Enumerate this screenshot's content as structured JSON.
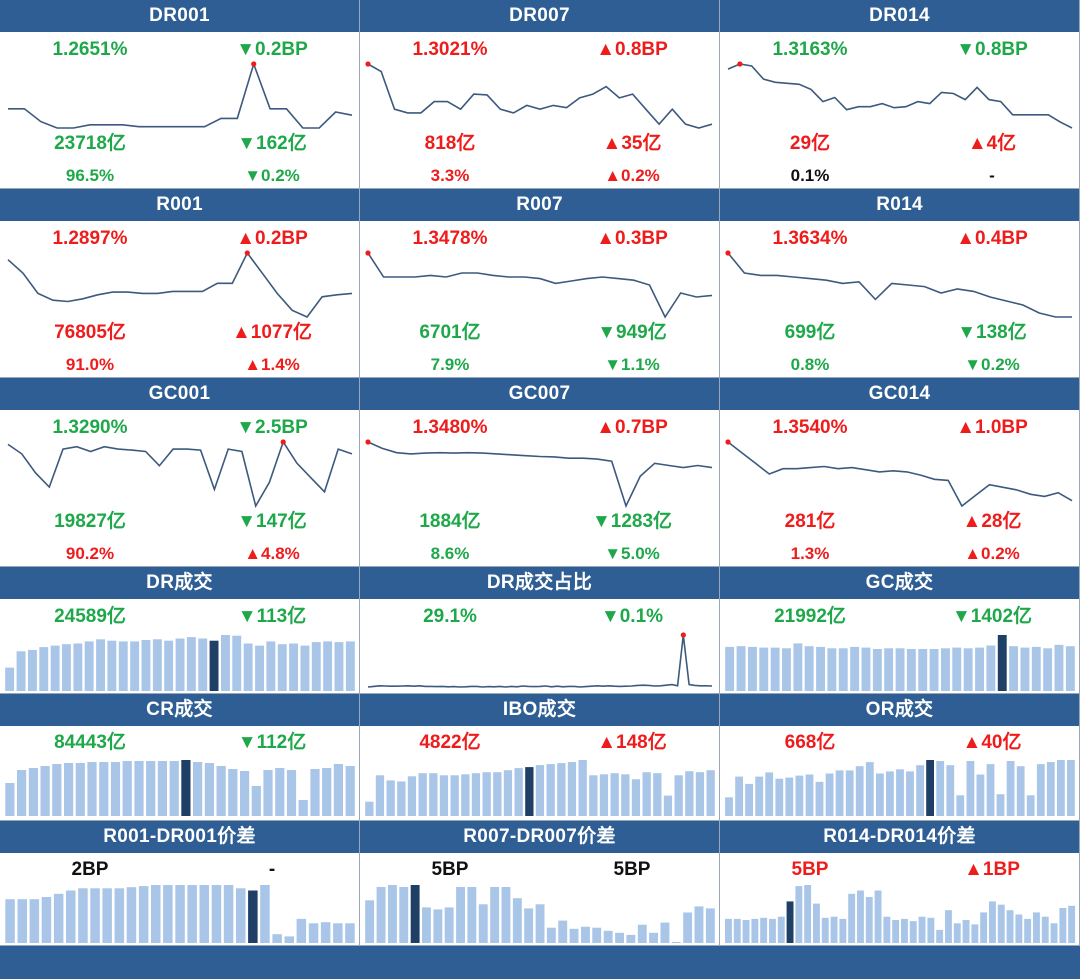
{
  "colors": {
    "header": "#2e5e94",
    "up": "#ef1c1c",
    "down": "#1fa84a",
    "bar": "#a9c6e8",
    "bar_highlight": "#1f3f66",
    "line": "#3c5a7d"
  },
  "rate_panels": [
    {
      "title": "DR001",
      "rate": "1.2651%",
      "rate_dir": "down",
      "change": "▼0.2BP",
      "change_dir": "down",
      "volume": "23718亿",
      "volume_dir": "down",
      "vol_change": "▼162亿",
      "vol_change_dir": "down",
      "share": "96.5%",
      "share_dir": "down",
      "share_change": "▼0.2%",
      "share_change_dir": "down",
      "series": [
        1.29,
        1.29,
        1.27,
        1.26,
        1.26,
        1.265,
        1.265,
        1.265,
        1.262,
        1.262,
        1.262,
        1.262,
        1.262,
        1.275,
        1.275,
        1.36,
        1.29,
        1.29,
        1.26,
        1.26,
        1.285,
        1.28
      ],
      "highlight": 15
    },
    {
      "title": "DR007",
      "rate": "1.3021%",
      "rate_dir": "up",
      "change": "▲0.8BP",
      "change_dir": "up",
      "volume": "818亿",
      "volume_dir": "up",
      "vol_change": "▲35亿",
      "vol_change_dir": "up",
      "share": "3.3%",
      "share_dir": "up",
      "share_change": "▲0.2%",
      "share_change_dir": "up",
      "series": [
        1.33,
        1.32,
        1.27,
        1.265,
        1.265,
        1.28,
        1.28,
        1.27,
        1.29,
        1.289,
        1.27,
        1.265,
        1.275,
        1.27,
        1.275,
        1.272,
        1.285,
        1.29,
        1.3,
        1.285,
        1.29,
        1.27,
        1.25,
        1.27,
        1.25,
        1.245,
        1.25
      ],
      "highlight": 0
    },
    {
      "title": "DR014",
      "rate": "1.3163%",
      "rate_dir": "down",
      "change": "▼0.8BP",
      "change_dir": "down",
      "volume": "29亿",
      "volume_dir": "up",
      "vol_change": "▲4亿",
      "vol_change_dir": "up",
      "share": "0.1%",
      "share_dir": "neutral",
      "share_change": "-",
      "share_change_dir": "neutral",
      "series": [
        1.35,
        1.355,
        1.353,
        1.34,
        1.337,
        1.336,
        1.335,
        1.33,
        1.318,
        1.322,
        1.31,
        1.313,
        1.313,
        1.316,
        1.312,
        1.313,
        1.318,
        1.316,
        1.327,
        1.326,
        1.32,
        1.332,
        1.32,
        1.318,
        1.305,
        1.305,
        1.305,
        1.305,
        1.298,
        1.292
      ],
      "highlight": 1
    },
    {
      "title": "R001",
      "rate": "1.2897%",
      "rate_dir": "up",
      "change": "▲0.2BP",
      "change_dir": "up",
      "volume": "76805亿",
      "volume_dir": "up",
      "vol_change": "▲1077亿",
      "vol_change_dir": "up",
      "share": "91.0%",
      "share_dir": "up",
      "share_change": "▲1.4%",
      "share_change_dir": "up",
      "series": [
        1.33,
        1.31,
        1.28,
        1.27,
        1.268,
        1.272,
        1.278,
        1.282,
        1.282,
        1.28,
        1.28,
        1.283,
        1.283,
        1.283,
        1.295,
        1.295,
        1.34,
        1.31,
        1.28,
        1.255,
        1.245,
        1.275,
        1.278,
        1.28
      ],
      "highlight": 16
    },
    {
      "title": "R007",
      "rate": "1.3478%",
      "rate_dir": "up",
      "change": "▲0.3BP",
      "change_dir": "up",
      "volume": "6701亿",
      "volume_dir": "down",
      "vol_change": "▼949亿",
      "vol_change_dir": "down",
      "share": "7.9%",
      "share_dir": "down",
      "share_change": "▼1.1%",
      "share_change_dir": "down",
      "series": [
        1.38,
        1.35,
        1.35,
        1.35,
        1.352,
        1.35,
        1.355,
        1.355,
        1.352,
        1.35,
        1.35,
        1.348,
        1.342,
        1.345,
        1.348,
        1.35,
        1.348,
        1.346,
        1.34,
        1.3,
        1.33,
        1.325,
        1.327
      ],
      "highlight": 0
    },
    {
      "title": "R014",
      "rate": "1.3634%",
      "rate_dir": "up",
      "change": "▲0.4BP",
      "change_dir": "up",
      "volume": "699亿",
      "volume_dir": "down",
      "vol_change": "▼138亿",
      "vol_change_dir": "down",
      "share": "0.8%",
      "share_dir": "down",
      "share_change": "▼0.2%",
      "share_change_dir": "down",
      "series": [
        1.4,
        1.375,
        1.372,
        1.372,
        1.37,
        1.368,
        1.366,
        1.362,
        1.364,
        1.342,
        1.362,
        1.36,
        1.358,
        1.35,
        1.355,
        1.352,
        1.345,
        1.34,
        1.335,
        1.325,
        1.32,
        1.32
      ],
      "highlight": 0
    },
    {
      "title": "GC001",
      "rate": "1.3290%",
      "rate_dir": "down",
      "change": "▼2.5BP",
      "change_dir": "down",
      "volume": "19827亿",
      "volume_dir": "down",
      "vol_change": "▼147亿",
      "vol_change_dir": "down",
      "share": "90.2%",
      "share_dir": "up",
      "share_change": "▲4.8%",
      "share_change_dir": "up",
      "series": [
        1.39,
        1.37,
        1.33,
        1.3,
        1.38,
        1.385,
        1.375,
        1.385,
        1.38,
        1.378,
        1.375,
        1.345,
        1.38,
        1.38,
        1.378,
        1.295,
        1.38,
        1.375,
        1.26,
        1.31,
        1.395,
        1.35,
        1.32,
        1.29,
        1.38,
        1.37
      ],
      "highlight": 20
    },
    {
      "title": "GC007",
      "rate": "1.3480%",
      "rate_dir": "up",
      "change": "▲0.7BP",
      "change_dir": "up",
      "volume": "1884亿",
      "volume_dir": "down",
      "vol_change": "▼1283亿",
      "vol_change_dir": "down",
      "share": "8.6%",
      "share_dir": "down",
      "share_change": "▼5.0%",
      "share_change_dir": "down",
      "series": [
        1.4,
        1.385,
        1.375,
        1.372,
        1.374,
        1.375,
        1.374,
        1.375,
        1.374,
        1.372,
        1.37,
        1.368,
        1.366,
        1.365,
        1.362,
        1.362,
        1.36,
        1.355,
        1.25,
        1.32,
        1.35,
        1.345,
        1.34,
        1.345,
        1.34
      ],
      "highlight": 0
    },
    {
      "title": "GC014",
      "rate": "1.3540%",
      "rate_dir": "up",
      "change": "▲1.0BP",
      "change_dir": "up",
      "volume": "281亿",
      "volume_dir": "up",
      "vol_change": "▲28亿",
      "vol_change_dir": "up",
      "share": "1.3%",
      "share_dir": "up",
      "share_change": "▲0.2%",
      "share_change_dir": "up",
      "series": [
        1.42,
        1.4,
        1.38,
        1.36,
        1.37,
        1.37,
        1.372,
        1.374,
        1.37,
        1.372,
        1.368,
        1.364,
        1.366,
        1.364,
        1.358,
        1.35,
        1.348,
        1.3,
        1.32,
        1.34,
        1.335,
        1.33,
        1.322,
        1.318,
        1.325,
        1.31
      ],
      "highlight": 0
    }
  ],
  "volume_panels": [
    {
      "title": "DR成交",
      "value": "24589亿",
      "value_dir": "down",
      "change": "▼113亿",
      "change_dir": "down",
      "type": "bar",
      "series": [
        33,
        56,
        58,
        62,
        64,
        66,
        67,
        70,
        73,
        71,
        70,
        70,
        72,
        73,
        71,
        74,
        76,
        74,
        71,
        79,
        78,
        67,
        64,
        70,
        66,
        67,
        64,
        69,
        70,
        69,
        70
      ],
      "highlight": 18
    },
    {
      "title": "DR成交占比",
      "value": "29.1%",
      "value_dir": "down",
      "change": "▼0.1%",
      "change_dir": "down",
      "type": "line",
      "series": [
        3.0,
        3.3,
        3.6,
        3.5,
        3.4,
        3.4,
        3.5,
        3.6,
        3.4,
        3.6,
        3.3,
        3.3,
        3.2,
        3.3,
        3.1,
        3.2,
        3.0,
        3.1,
        3.3,
        3.3,
        3.0,
        3.2,
        3.1,
        3.3,
        3.0,
        3.3,
        3.1,
        3.5,
        3.3,
        3.2,
        3.3,
        3.5,
        3.1,
        3.4,
        3.1,
        3.3,
        3.3,
        3.0,
        3.2,
        3.4,
        3.6,
        3.4,
        3.6,
        3.4,
        3.3,
        3.4,
        3.5,
        3.8,
        3.9,
        3.8,
        3.5,
        3.6,
        3.9,
        4.2,
        3.6,
        29.1,
        4.2,
        3.8,
        3.6,
        3.6,
        3.5
      ],
      "highlight": 55
    },
    {
      "title": "GC成交",
      "value": "21992亿",
      "value_dir": "down",
      "change": "▼1402亿",
      "change_dir": "down",
      "type": "bar",
      "series": [
        63,
        64,
        63,
        62,
        62,
        61,
        68,
        64,
        63,
        61,
        61,
        63,
        62,
        60,
        61,
        61,
        60,
        60,
        60,
        61,
        62,
        61,
        62,
        65,
        80,
        64,
        62,
        63,
        61,
        66,
        64
      ],
      "highlight": 24
    }
  ],
  "transaction_panels": [
    {
      "title": "CR成交",
      "value": "84443亿",
      "value_dir": "down",
      "change": "▼112亿",
      "change_dir": "down",
      "series": [
        33,
        46,
        48,
        50,
        52,
        53,
        53,
        54,
        54,
        54,
        55,
        55,
        55,
        55,
        55,
        56,
        54,
        53,
        50,
        47,
        45,
        30,
        46,
        48,
        46,
        16,
        47,
        48,
        52,
        50
      ],
      "highlight": 15
    },
    {
      "title": "IBO成交",
      "value": "4822亿",
      "value_dir": "up",
      "change": "▲148亿",
      "change_dir": "up",
      "series": [
        14,
        40,
        35,
        34,
        39,
        42,
        42,
        40,
        40,
        41,
        42,
        43,
        43,
        45,
        47,
        48,
        50,
        51,
        52,
        53,
        55,
        40,
        41,
        42,
        41,
        36,
        43,
        42,
        20,
        40,
        44,
        43,
        45
      ],
      "highlight": 15
    },
    {
      "title": "OR成交",
      "value": "668亿",
      "value_dir": "up",
      "change": "▲40亿",
      "change_dir": "up",
      "series": [
        18,
        38,
        31,
        38,
        42,
        36,
        37,
        39,
        40,
        33,
        41,
        44,
        44,
        48,
        52,
        41,
        43,
        45,
        43,
        49,
        54,
        53,
        49,
        20,
        53,
        40,
        50,
        21,
        53,
        48,
        20,
        50,
        52,
        54,
        54
      ],
      "highlight": 20
    }
  ],
  "spread_panels": [
    {
      "title": "R001-DR001价差",
      "value": "2BP",
      "value_dir": "neutral",
      "change": "-",
      "change_dir": "neutral",
      "series": [
        40,
        40,
        40,
        42,
        45,
        48,
        50,
        50,
        50,
        50,
        51,
        52,
        53,
        53,
        53,
        53,
        53,
        53,
        53,
        50,
        48,
        53,
        8,
        6,
        22,
        18,
        19,
        18,
        18
      ],
      "highlight": 20
    },
    {
      "title": "R007-DR007价差",
      "value": "5BP",
      "value_dir": "neutral",
      "change": "5BP",
      "change_dir": "neutral",
      "series": [
        42,
        55,
        57,
        55,
        57,
        35,
        33,
        35,
        55,
        55,
        38,
        55,
        55,
        44,
        34,
        38,
        15,
        22,
        14,
        16,
        15,
        12,
        10,
        8,
        18,
        10,
        20,
        1,
        30,
        36,
        34
      ],
      "highlight": 4
    },
    {
      "title": "R014-DR014价差",
      "value": "5BP",
      "value_dir": "up",
      "change": "▲1BP",
      "change_dir": "up",
      "series": [
        22,
        22,
        21,
        22,
        23,
        22,
        24,
        38,
        52,
        53,
        36,
        23,
        24,
        22,
        45,
        48,
        42,
        48,
        24,
        21,
        22,
        20,
        24,
        23,
        12,
        30,
        18,
        21,
        17,
        28,
        38,
        35,
        30,
        26,
        22,
        28,
        24,
        18,
        32,
        34
      ],
      "highlight": 7
    }
  ]
}
